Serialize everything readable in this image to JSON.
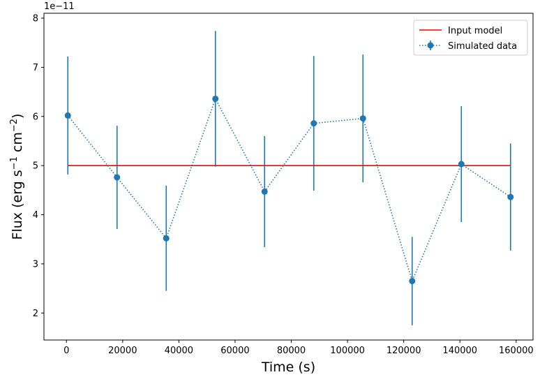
{
  "chart_data": {
    "type": "scatter",
    "title": "",
    "xlabel": "Time (s)",
    "ylabel_parts": {
      "prefix": "Flux (erg s",
      "exp1": "−1",
      "mid": " cm",
      "exp2": "−2",
      "suffix": ")"
    },
    "ylabel": "Flux (erg s^-1 cm^-2)",
    "y_offset_label": "1e−11",
    "xlim": [
      -8000,
      166000
    ],
    "ylim": [
      1.45,
      8.1
    ],
    "x_ticks": [
      0,
      20000,
      40000,
      60000,
      80000,
      100000,
      120000,
      140000,
      160000
    ],
    "x_tick_labels": [
      "0",
      "20000",
      "40000",
      "60000",
      "80000",
      "100000",
      "120000",
      "140000",
      "160000"
    ],
    "y_ticks": [
      2,
      3,
      4,
      5,
      6,
      7,
      8
    ],
    "y_tick_labels": [
      "2",
      "3",
      "4",
      "5",
      "6",
      "7",
      "8"
    ],
    "legend_position": "top-right",
    "series": [
      {
        "name": "Input model",
        "kind": "line",
        "color": "#ff0000",
        "x": [
          500,
          157900
        ],
        "y": [
          5.0,
          5.0
        ]
      },
      {
        "name": "Simulated data",
        "kind": "errorbar",
        "color": "#1f77b4",
        "linestyle": "dotted",
        "x": [
          500,
          18000,
          35500,
          53000,
          70500,
          88000,
          105500,
          123000,
          140500,
          158000
        ],
        "y": [
          6.02,
          4.76,
          3.52,
          6.36,
          4.47,
          5.86,
          5.96,
          2.65,
          5.03,
          4.36
        ],
        "yerr": [
          1.2,
          1.05,
          1.07,
          1.38,
          1.13,
          1.37,
          1.3,
          0.9,
          1.18,
          1.09
        ]
      }
    ]
  }
}
